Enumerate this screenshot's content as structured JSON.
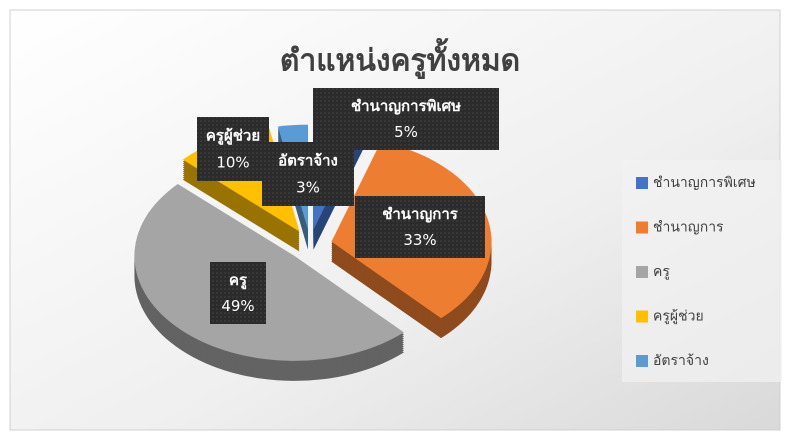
{
  "chart_data": {
    "type": "pie",
    "title": "ตำแหน่งครูทั้งหมด",
    "categories": [
      "ชำนาญการพิเศษ",
      "ชำนาญการ",
      "ครู",
      "ครูผู้ช่วย",
      "อัตราจ้าง"
    ],
    "values": [
      5,
      33,
      49,
      10,
      3
    ],
    "value_labels": [
      "5%",
      "33%",
      "49%",
      "10%",
      "3%"
    ],
    "colors": [
      "#4472c4",
      "#ed7d31",
      "#a5a5a5",
      "#ffc000",
      "#5b9bd5"
    ],
    "legend": "right"
  }
}
